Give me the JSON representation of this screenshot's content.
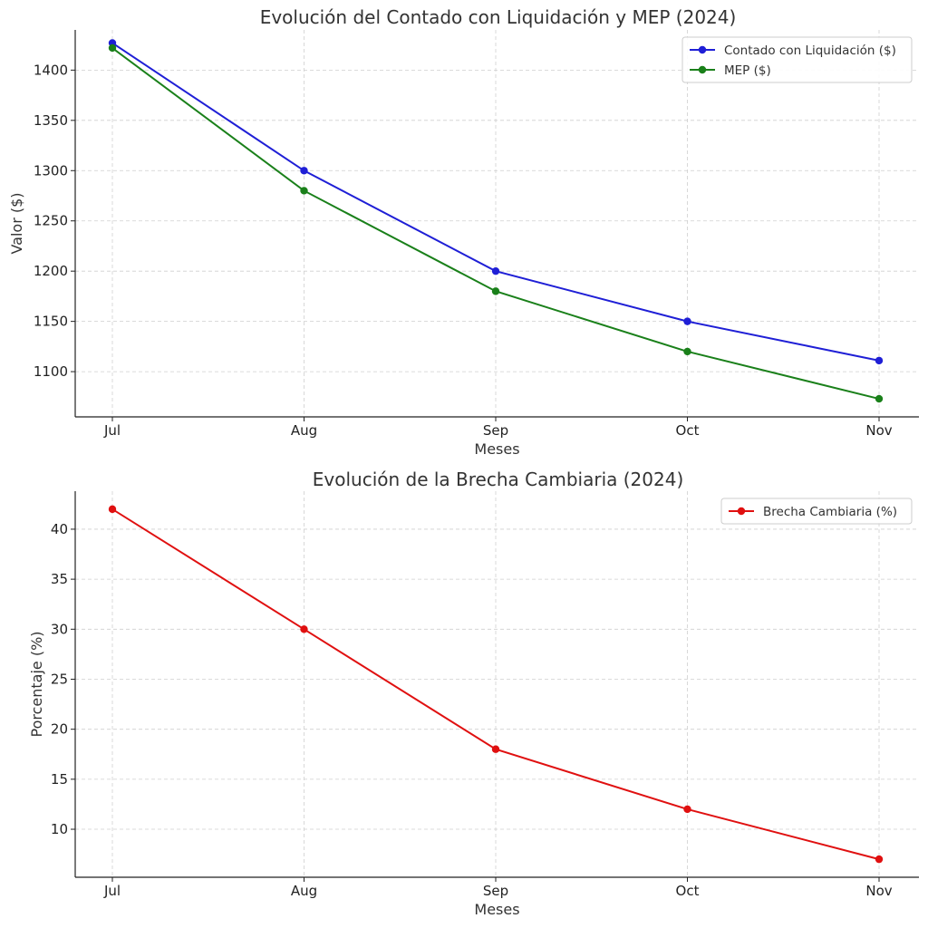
{
  "chart_data": [
    {
      "type": "line",
      "title": "Evolución del Contado con Liquidación y MEP (2024)",
      "xlabel": "Meses",
      "ylabel": "Valor ($)",
      "categories": [
        "Jul",
        "Aug",
        "Sep",
        "Oct",
        "Nov"
      ],
      "ylim": [
        1055,
        1440
      ],
      "yticks": [
        1100,
        1150,
        1200,
        1250,
        1300,
        1350,
        1400
      ],
      "grid": true,
      "legend_position": "top-right",
      "series": [
        {
          "name": "Contado con Liquidación ($)",
          "color": "#1f1fd6",
          "values": [
            1427,
            1300,
            1200,
            1150,
            1111
          ]
        },
        {
          "name": "MEP ($)",
          "color": "#1a801a",
          "values": [
            1422,
            1280,
            1180,
            1120,
            1073
          ]
        }
      ]
    },
    {
      "type": "line",
      "title": "Evolución de la Brecha Cambiaria (2024)",
      "xlabel": "Meses",
      "ylabel": "Porcentaje (%)",
      "categories": [
        "Jul",
        "Aug",
        "Sep",
        "Oct",
        "Nov"
      ],
      "ylim": [
        5.2,
        43.8
      ],
      "yticks": [
        10,
        15,
        20,
        25,
        30,
        35,
        40
      ],
      "grid": true,
      "legend_position": "top-right",
      "series": [
        {
          "name": "Brecha Cambiaria (%)",
          "color": "#e01010",
          "values": [
            42,
            30,
            18,
            12,
            7
          ]
        }
      ]
    }
  ]
}
